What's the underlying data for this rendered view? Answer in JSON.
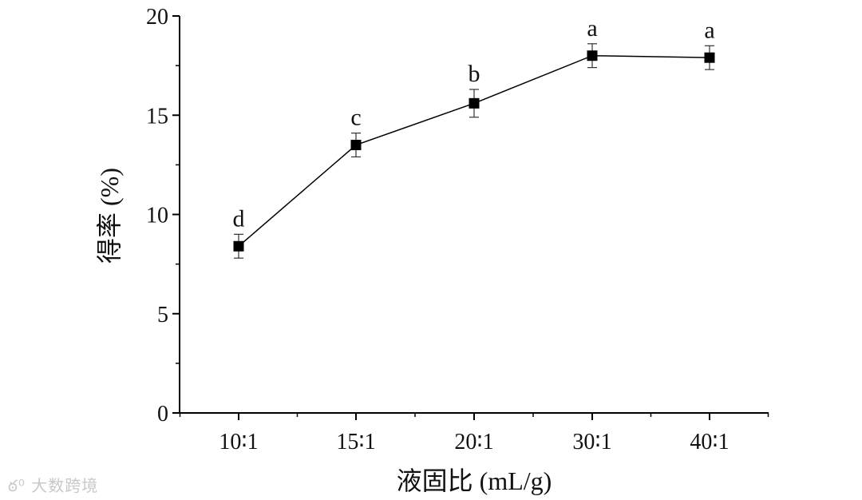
{
  "chart_data": {
    "type": "line",
    "title": "",
    "xlabel": "液固比 (mL/g)",
    "ylabel": "得率 (%)",
    "categories": [
      "10∶1",
      "15∶1",
      "20∶1",
      "30∶1",
      "40∶1"
    ],
    "series": [
      {
        "values": [
          8.4,
          13.5,
          15.6,
          18.0,
          17.9
        ],
        "error": [
          0.6,
          0.6,
          0.7,
          0.6,
          0.6
        ],
        "significance": [
          "d",
          "c",
          "b",
          "a",
          "a"
        ],
        "marker": "square",
        "color": "#000000"
      }
    ],
    "ylim": [
      0,
      20
    ],
    "yticks": [
      0,
      5,
      10,
      15,
      20
    ],
    "grid": false,
    "legend": "none"
  },
  "watermark": {
    "text": "大数跨境"
  }
}
